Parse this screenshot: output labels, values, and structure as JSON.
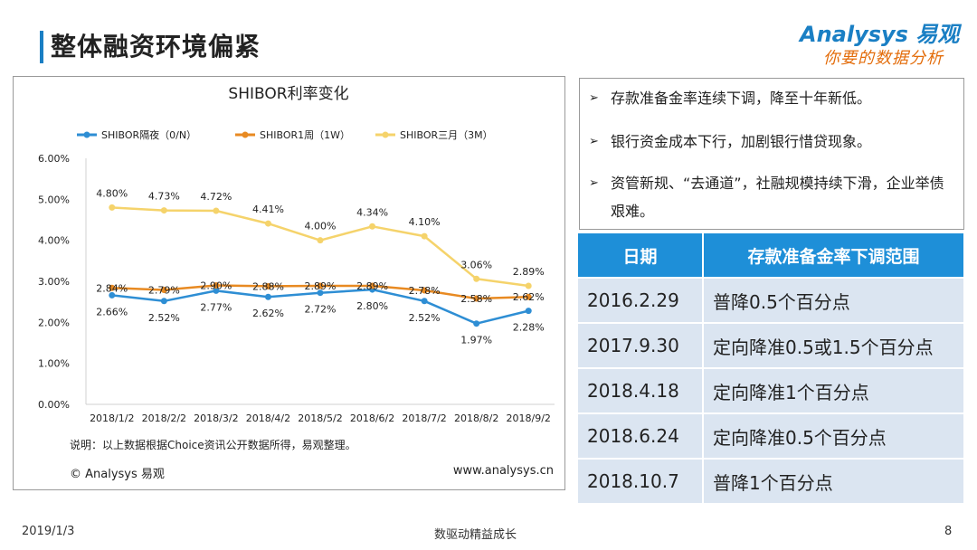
{
  "page": {
    "title": "整体融资环境偏紧",
    "logo_brand": "Analysys 易观",
    "logo_slogan": "你要的数据分析",
    "footer_date": "2019/1/3",
    "footer_center": "数驱动精益成长",
    "page_number": "8"
  },
  "chart_note": "说明：以上数据根据Choice资讯公开数据所得，易观整理。",
  "chart_copyright": "© Analysys 易观",
  "chart_site": "www.analysys.cn",
  "bullets": [
    "存款准备金率连续下调，降至十年新低。",
    "银行资金成本下行，加剧银行惜贷现象。",
    "资管新规、“去通道”，社融规模持续下滑，企业举债艰难。"
  ],
  "table": {
    "headers": [
      "日期",
      "存款准备金率下调范围"
    ],
    "rows": [
      [
        "2016.2.29",
        "普降0.5个百分点"
      ],
      [
        "2017.9.30",
        "定向降准0.5或1.5个百分点"
      ],
      [
        "2018.4.18",
        "定向降准1个百分点"
      ],
      [
        "2018.6.24",
        "定向降准0.5个百分点"
      ],
      [
        "2018.10.7",
        "普降1个百分点"
      ]
    ]
  },
  "chart_data": {
    "type": "line",
    "title": "SHIBOR利率变化",
    "categories": [
      "2018/1/2",
      "2018/2/2",
      "2018/3/2",
      "2018/4/2",
      "2018/5/2",
      "2018/6/2",
      "2018/7/2",
      "2018/8/2",
      "2018/9/2"
    ],
    "y_ticks": [
      "0.00%",
      "1.00%",
      "2.00%",
      "3.00%",
      "4.00%",
      "5.00%",
      "6.00%"
    ],
    "ylim": [
      0,
      6
    ],
    "grid": false,
    "legend_position": "top",
    "series": [
      {
        "name": "SHIBOR隔夜（0/N）",
        "color": "#2e8ed4",
        "values": [
          2.66,
          2.52,
          2.77,
          2.62,
          2.72,
          2.8,
          2.52,
          1.97,
          2.28
        ],
        "labels": [
          "2.66%",
          "2.52%",
          "2.77%",
          "2.62%",
          "2.72%",
          "2.80%",
          "2.52%",
          "1.97%",
          "2.28%"
        ]
      },
      {
        "name": "SHIBOR1周（1W）",
        "color": "#e88a22",
        "values": [
          2.84,
          2.79,
          2.9,
          2.88,
          2.89,
          2.89,
          2.78,
          2.58,
          2.62
        ],
        "labels": [
          "2.84%",
          "2.79%",
          "2.90%",
          "2.88%",
          "2.89%",
          "2.89%",
          "2.78%",
          "2.58%",
          "2.62%"
        ]
      },
      {
        "name": "SHIBOR三月（3M）",
        "color": "#f5d36b",
        "values": [
          4.8,
          4.73,
          4.72,
          4.41,
          4.0,
          4.34,
          4.1,
          3.06,
          2.89
        ],
        "labels": [
          "4.80%",
          "4.73%",
          "4.72%",
          "4.41%",
          "4.00%",
          "4.34%",
          "4.10%",
          "3.06%",
          "2.89%"
        ]
      }
    ]
  }
}
